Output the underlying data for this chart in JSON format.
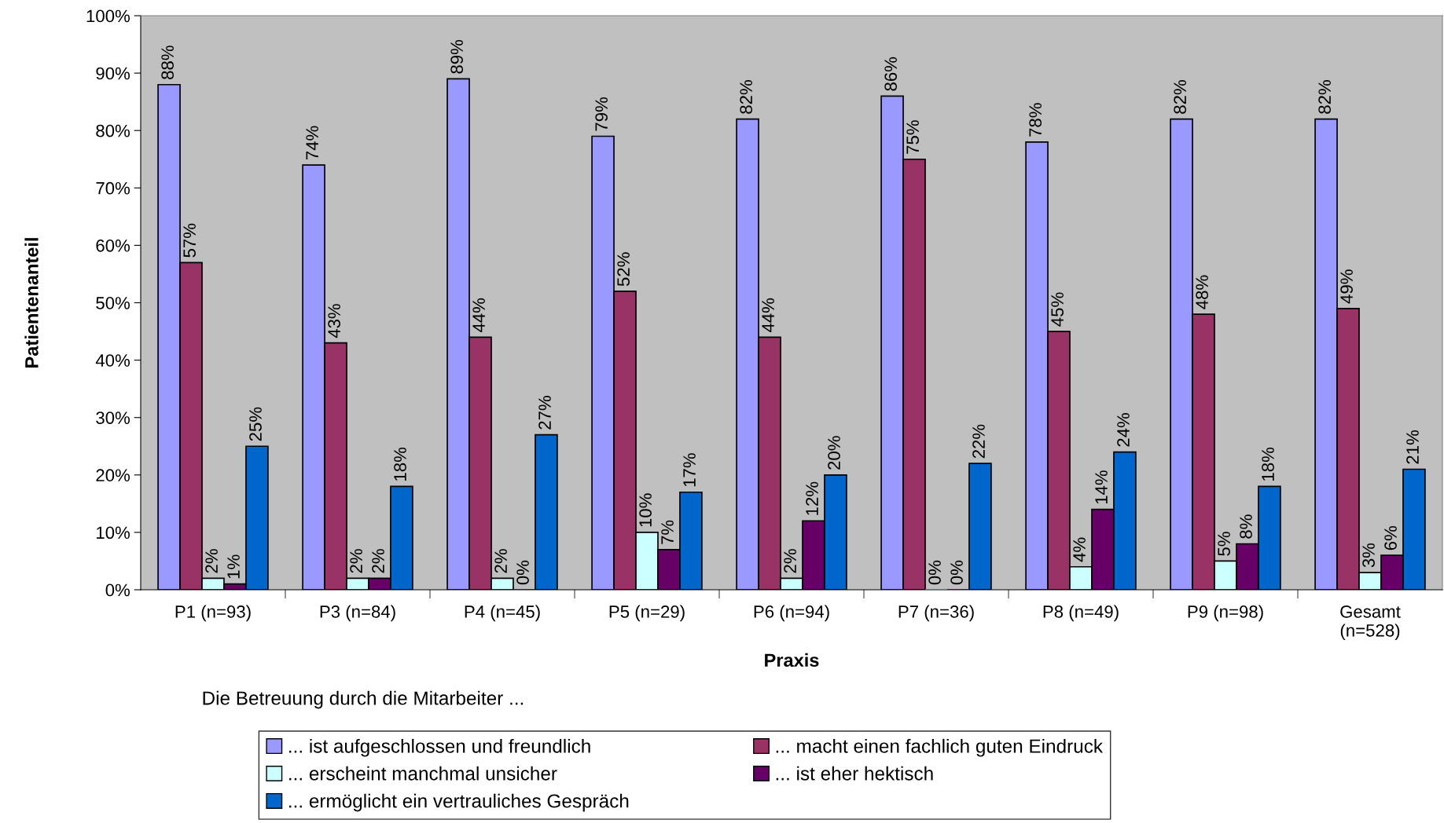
{
  "chart_data": {
    "type": "bar",
    "xlabel": "Praxis",
    "ylabel": "Patientenanteil",
    "legend_title": "Die Betreuung durch die Mitarbeiter ...",
    "categories": [
      "P1 (n=93)",
      "P3 (n=84)",
      "P4 (n=45)",
      "P5 (n=29)",
      "P6 (n=94)",
      "P7 (n=36)",
      "P8 (n=49)",
      "P9 (n=98)",
      "Gesamt\n(n=528)"
    ],
    "series": [
      {
        "name": "... ist aufgeschlossen und freundlich",
        "color": "#9999ff",
        "values": [
          88,
          74,
          89,
          79,
          82,
          86,
          78,
          82,
          82
        ],
        "value_labels": [
          "88%",
          "74%",
          "89%",
          "79%",
          "82%",
          "86%",
          "78%",
          "82%",
          "82%"
        ]
      },
      {
        "name": "... macht einen fachlich guten Eindruck",
        "color": "#993366",
        "values": [
          57,
          43,
          44,
          52,
          44,
          75,
          45,
          48,
          49
        ],
        "value_labels": [
          "57%",
          "43%",
          "44%",
          "52%",
          "44%",
          "75%",
          "45%",
          "48%",
          "49%"
        ]
      },
      {
        "name": "... erscheint manchmal unsicher",
        "color": "#ccffff",
        "values": [
          2,
          2,
          2,
          10,
          2,
          0,
          4,
          5,
          3
        ],
        "value_labels": [
          "2%",
          "2%",
          "2%",
          "10%",
          "2%",
          "0%",
          "4%",
          "5%",
          "3%"
        ]
      },
      {
        "name": "... ist eher hektisch",
        "color": "#660066",
        "values": [
          1,
          2,
          0,
          7,
          12,
          0,
          14,
          8,
          6
        ],
        "value_labels": [
          "1%",
          "2%",
          "0%",
          "7%",
          "12%",
          "0%",
          "14%",
          "8%",
          "6%"
        ]
      },
      {
        "name": "... ermöglicht ein vertrauliches Gespräch",
        "color": "#0066cc",
        "values": [
          25,
          18,
          27,
          17,
          20,
          22,
          24,
          18,
          21
        ],
        "value_labels": [
          "25%",
          "18%",
          "27%",
          "17%",
          "20%",
          "22%",
          "24%",
          "18%",
          "21%"
        ]
      }
    ],
    "ylim": [
      0,
      100
    ],
    "yticks": [
      {
        "value": 0,
        "label": "0%"
      },
      {
        "value": 10,
        "label": "10%"
      },
      {
        "value": 20,
        "label": "20%"
      },
      {
        "value": 30,
        "label": "30%"
      },
      {
        "value": 40,
        "label": "40%"
      },
      {
        "value": 50,
        "label": "50%"
      },
      {
        "value": 60,
        "label": "60%"
      },
      {
        "value": 70,
        "label": "70%"
      },
      {
        "value": 80,
        "label": "80%"
      },
      {
        "value": 90,
        "label": "90%"
      },
      {
        "value": 100,
        "label": "100%"
      }
    ],
    "grid": false,
    "legend": "bottom"
  }
}
